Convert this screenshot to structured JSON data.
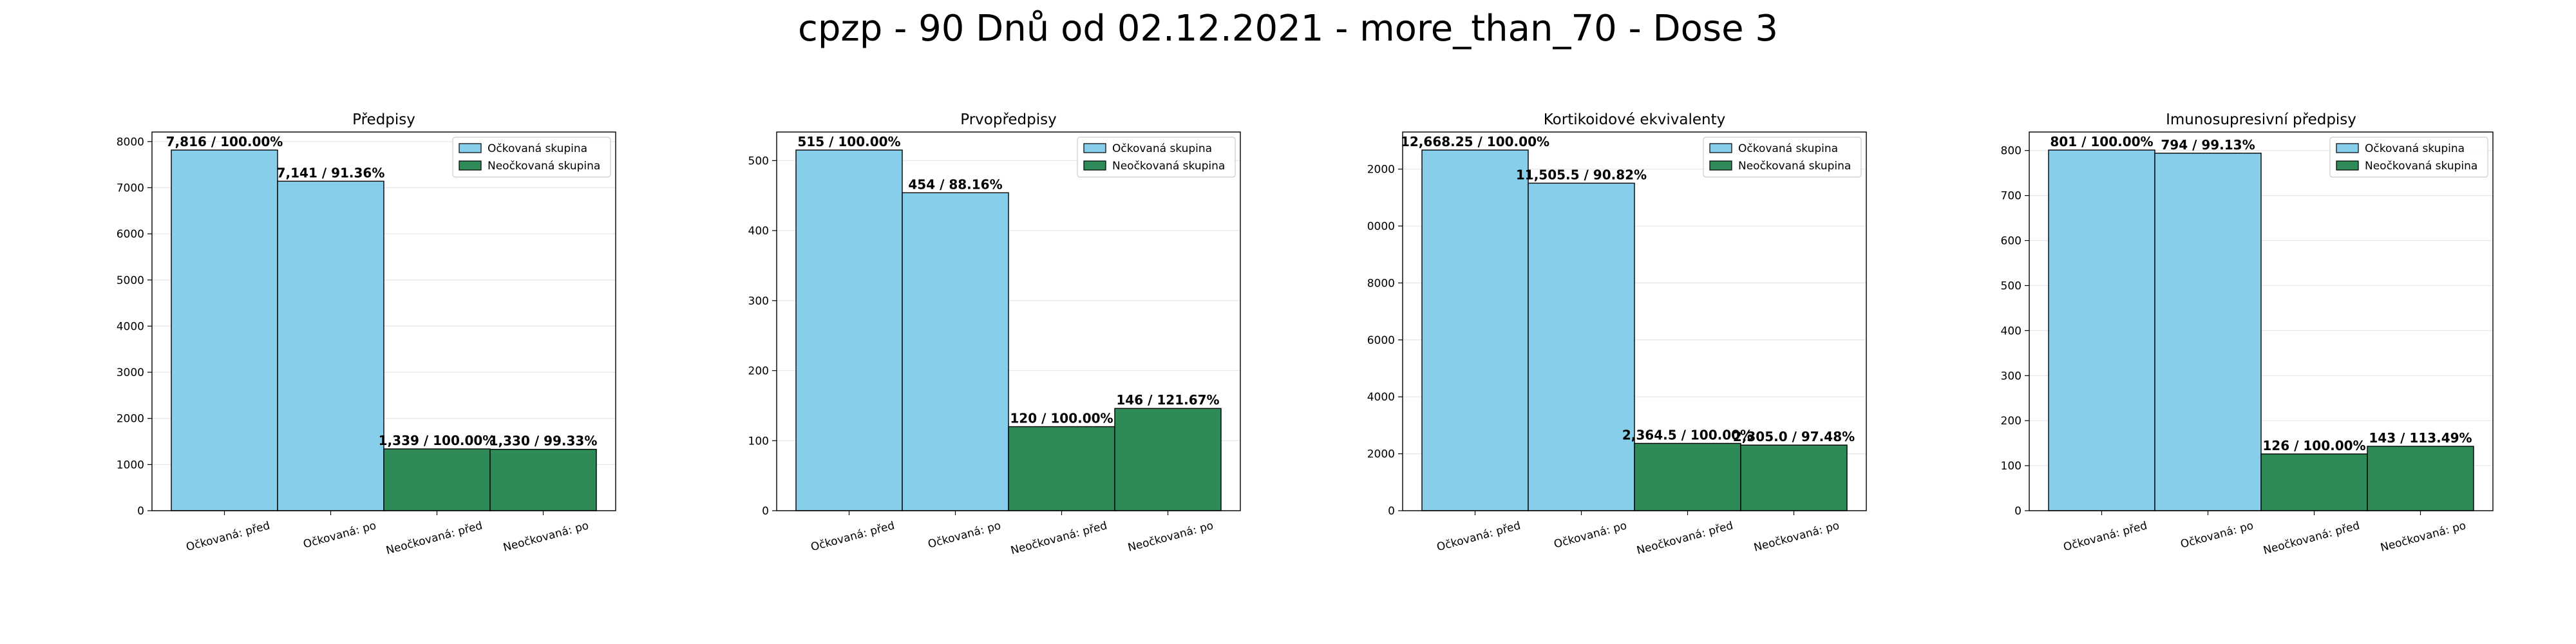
{
  "suptitle": "cpzp - 90 Dnů od 02.12.2021 - more_than_70 - Dose 3",
  "colors": {
    "vaccinated": "#87ceeb",
    "unvaccinated": "#2e8b57",
    "edge": "#000000",
    "grid": "#e6e6e6"
  },
  "chart_data": [
    {
      "type": "bar",
      "title": "Předpisy",
      "categories": [
        "Očkovaná: před",
        "Očkovaná: po",
        "Neočkovaná: před",
        "Neočkovaná: po"
      ],
      "values": [
        7816,
        7141,
        1339,
        1330
      ],
      "value_labels": [
        "7,816 / 100.00%",
        "7,141 / 91.36%",
        "1,339 / 100.00%",
        "1,330 / 99.33%"
      ],
      "bar_groups": [
        "vaccinated",
        "vaccinated",
        "unvaccinated",
        "unvaccinated"
      ],
      "legend": [
        "Očkovaná skupina",
        "Neočkovaná skupina"
      ],
      "legend_position": "top-right",
      "ylim": [
        0,
        8206.8
      ],
      "yticks": [
        0,
        1000,
        2000,
        3000,
        4000,
        5000,
        6000,
        7000,
        8000
      ],
      "ytick_labels": [
        "0",
        "1000",
        "2000",
        "3000",
        "4000",
        "5000",
        "6000",
        "7000",
        "8000"
      ],
      "grid": true
    },
    {
      "type": "bar",
      "title": "Prvopředpisy",
      "categories": [
        "Očkovaná: před",
        "Očkovaná: po",
        "Neočkovaná: před",
        "Neočkovaná: po"
      ],
      "values": [
        515,
        454,
        120,
        146
      ],
      "value_labels": [
        "515 / 100.00%",
        "454 / 88.16%",
        "120 / 100.00%",
        "146 / 121.67%"
      ],
      "bar_groups": [
        "vaccinated",
        "vaccinated",
        "unvaccinated",
        "unvaccinated"
      ],
      "legend": [
        "Očkovaná skupina",
        "Neočkovaná skupina"
      ],
      "legend_position": "top-right",
      "ylim": [
        0,
        540.75
      ],
      "yticks": [
        0,
        100,
        200,
        300,
        400,
        500
      ],
      "ytick_labels": [
        "0",
        "100",
        "200",
        "300",
        "400",
        "500"
      ],
      "grid": true
    },
    {
      "type": "bar",
      "title": "Kortikoidové ekvivalenty",
      "categories": [
        "Očkovaná: před",
        "Očkovaná: po",
        "Neočkovaná: před",
        "Neočkovaná: po"
      ],
      "values": [
        12668.25,
        11505.5,
        2364.5,
        2305.0
      ],
      "value_labels": [
        "12,668.25 / 100.00%",
        "11,505.5 / 90.82%",
        "2,364.5 / 100.00%",
        "2,305.0 / 97.48%"
      ],
      "bar_groups": [
        "vaccinated",
        "vaccinated",
        "unvaccinated",
        "unvaccinated"
      ],
      "legend": [
        "Očkovaná skupina",
        "Neočkovaná skupina"
      ],
      "legend_position": "top-right",
      "ylim": [
        0,
        13301.7
      ],
      "yticks": [
        0,
        2000,
        4000,
        6000,
        8000,
        10000,
        12000
      ],
      "ytick_labels": [
        "0",
        "2000",
        "4000",
        "6000",
        "8000",
        "10000",
        "12000"
      ],
      "grid": true
    },
    {
      "type": "bar",
      "title": "Imunosupresivní předpisy",
      "categories": [
        "Očkovaná: před",
        "Očkovaná: po",
        "Neočkovaná: před",
        "Neočkovaná: po"
      ],
      "values": [
        801,
        794,
        126,
        143
      ],
      "value_labels": [
        "801 / 100.00%",
        "794 / 99.13%",
        "126 / 100.00%",
        "143 / 113.49%"
      ],
      "bar_groups": [
        "vaccinated",
        "vaccinated",
        "unvaccinated",
        "unvaccinated"
      ],
      "legend": [
        "Očkovaná skupina",
        "Neočkovaná skupina"
      ],
      "legend_position": "top-right",
      "ylim": [
        0,
        841.05
      ],
      "yticks": [
        0,
        100,
        200,
        300,
        400,
        500,
        600,
        700,
        800
      ],
      "ytick_labels": [
        "0",
        "100",
        "200",
        "300",
        "400",
        "500",
        "600",
        "700",
        "800"
      ],
      "grid": true
    }
  ]
}
